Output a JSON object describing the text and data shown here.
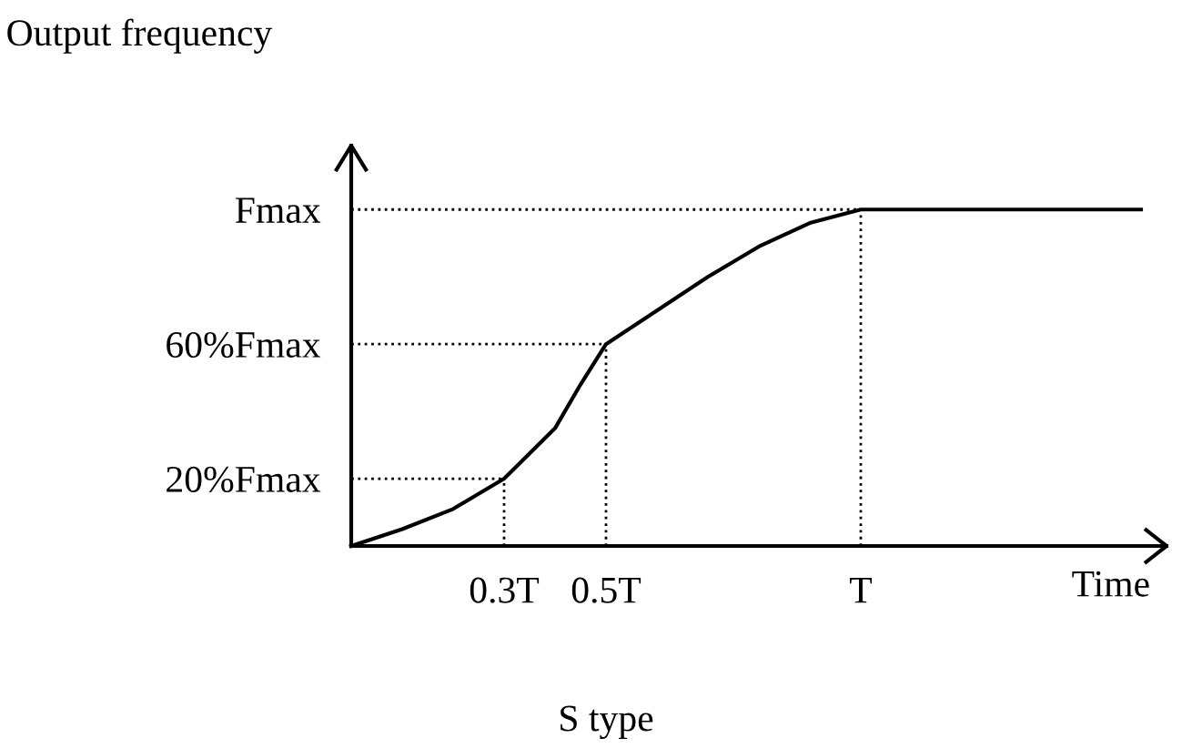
{
  "chart_data": {
    "type": "line",
    "ylabel": "Output frequency",
    "xlabel": "Time",
    "annotations": [
      "S type"
    ],
    "x": [
      0,
      0.1,
      0.2,
      0.3,
      0.4,
      0.45,
      0.5,
      0.6,
      0.7,
      0.8,
      0.9,
      1,
      1.55
    ],
    "series": [
      {
        "color": "#000000",
        "values": [
          0,
          0.05,
          0.11,
          0.2,
          0.35,
          0.48,
          0.6,
          0.7,
          0.8,
          0.89,
          0.96,
          1,
          1
        ]
      }
    ],
    "xlim": [
      0,
      1.6
    ],
    "ylim": [
      0,
      1.19
    ],
    "xticks": [
      {
        "value": 0.3,
        "label": "0.3T"
      },
      {
        "value": 0.5,
        "label": "0.5T"
      },
      {
        "value": 1,
        "label": "T"
      }
    ],
    "yticks": [
      {
        "value": 0.2,
        "label": "20%Fmax"
      },
      {
        "value": 0.6,
        "label": "60%Fmax"
      },
      {
        "value": 1,
        "label": "Fmax"
      }
    ],
    "ref_lines": [
      {
        "axis": "x",
        "value": 0.3,
        "line_style": "dotted"
      },
      {
        "axis": "x",
        "value": 0.5,
        "line_style": "dotted"
      },
      {
        "axis": "x",
        "value": 1,
        "line_style": "dotted"
      },
      {
        "axis": "y",
        "value": 0.2,
        "line_style": "dotted"
      },
      {
        "axis": "y",
        "value": 0.6,
        "line_style": "dotted"
      },
      {
        "axis": "y",
        "value": 1,
        "line_style": "dotted"
      }
    ],
    "grid": false,
    "marker": "none",
    "line_style": "solid"
  }
}
